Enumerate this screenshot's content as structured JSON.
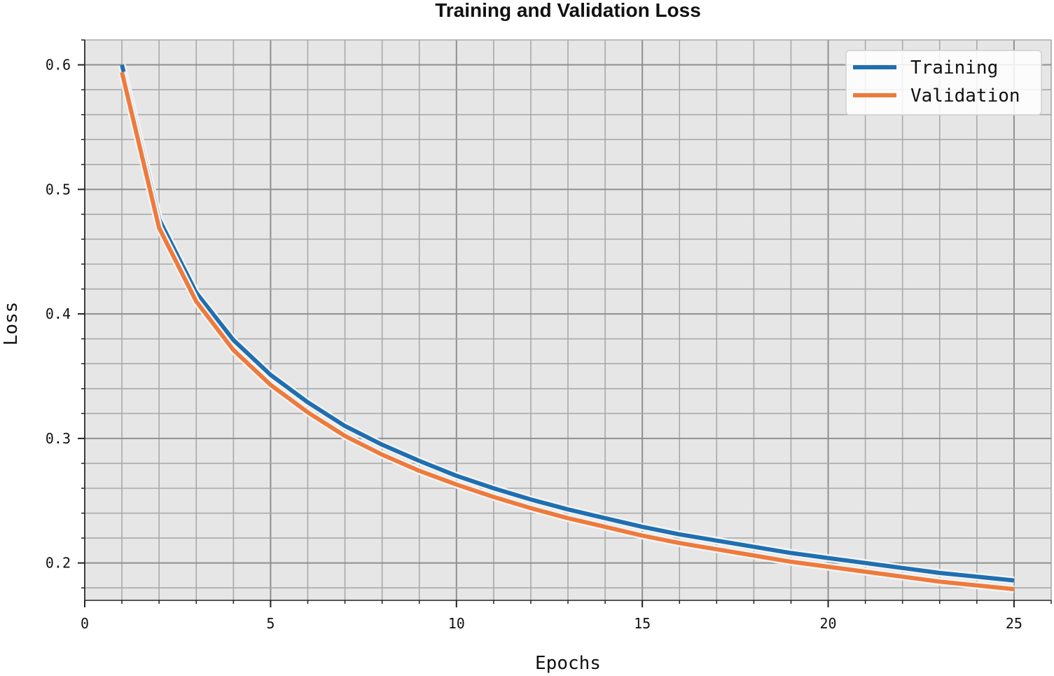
{
  "chart_data": {
    "type": "line",
    "title": "Training and Validation Loss",
    "xlabel": "Epochs",
    "ylabel": "Loss",
    "xlim": [
      0,
      26
    ],
    "ylim": [
      0.17,
      0.62
    ],
    "x_ticks": [
      0,
      5,
      10,
      15,
      20,
      25
    ],
    "x_tick_labels": [
      "0",
      "5",
      "10",
      "15",
      "20",
      "25"
    ],
    "y_ticks": [
      0.2,
      0.3,
      0.4,
      0.5,
      0.6
    ],
    "y_tick_labels": [
      "0.2",
      "0.3",
      "0.4",
      "0.5",
      "0.6"
    ],
    "grid": true,
    "minor_grid": true,
    "legend_position": "top-right",
    "x": [
      1,
      2,
      3,
      4,
      5,
      6,
      7,
      8,
      9,
      10,
      11,
      12,
      13,
      14,
      15,
      16,
      17,
      18,
      19,
      20,
      21,
      22,
      23,
      24,
      25
    ],
    "series": [
      {
        "name": "Training",
        "color": "#1f6fb0",
        "values": [
          0.6,
          0.476,
          0.417,
          0.379,
          0.351,
          0.329,
          0.31,
          0.295,
          0.282,
          0.27,
          0.26,
          0.251,
          0.243,
          0.236,
          0.229,
          0.223,
          0.218,
          0.213,
          0.208,
          0.204,
          0.2,
          0.196,
          0.192,
          0.189,
          0.186
        ]
      },
      {
        "name": "Validation",
        "color": "#ee7a3c",
        "values": [
          0.594,
          0.469,
          0.41,
          0.371,
          0.343,
          0.321,
          0.302,
          0.287,
          0.274,
          0.263,
          0.253,
          0.244,
          0.236,
          0.229,
          0.222,
          0.216,
          0.211,
          0.206,
          0.201,
          0.197,
          0.193,
          0.189,
          0.185,
          0.182,
          0.179
        ]
      }
    ]
  }
}
